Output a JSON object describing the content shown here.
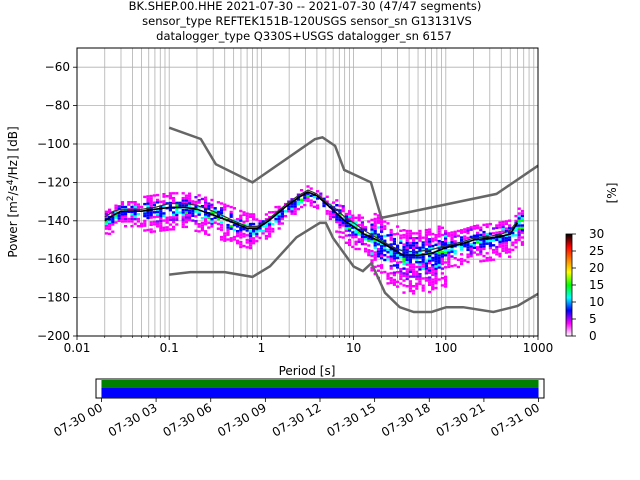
{
  "chart_data": {
    "type": "ppsd",
    "title_lines": [
      "BK.SHEP.00.HHE   2021-07-30 -- 2021-07-30  (47/47 segments)",
      "sensor_type REFTEK151B-120USGS sensor_sn G13131VS",
      "datalogger_type Q330S+USGS datalogger_sn 6157"
    ],
    "xlabel": "Period [s]",
    "ylabel_parts": {
      "pre": "Power [m",
      "sup1": "2",
      "mid": "/s",
      "sup2": "4",
      "post": "/Hz] [dB]"
    },
    "x_scale": "log",
    "xlim": [
      0.01,
      1000
    ],
    "ylim": [
      -200,
      -50
    ],
    "x_ticks": [
      {
        "value": 0.01,
        "label": "0.01"
      },
      {
        "value": 0.1,
        "label": "0.1"
      },
      {
        "value": 1,
        "label": "1"
      },
      {
        "value": 10,
        "label": "10"
      },
      {
        "value": 100,
        "label": "100"
      },
      {
        "value": 1000,
        "label": "1000"
      }
    ],
    "y_ticks": [
      {
        "value": -60,
        "label": "−60"
      },
      {
        "value": -80,
        "label": "−80"
      },
      {
        "value": -100,
        "label": "−100"
      },
      {
        "value": -120,
        "label": "−120"
      },
      {
        "value": -140,
        "label": "−140"
      },
      {
        "value": -160,
        "label": "−160"
      },
      {
        "value": -180,
        "label": "−180"
      },
      {
        "value": -200,
        "label": "−200"
      }
    ],
    "grid": true,
    "colorbar": {
      "label": "[%]",
      "range": [
        0,
        30
      ],
      "ticks": [
        {
          "value": 0,
          "label": "0"
        },
        {
          "value": 5,
          "label": "5"
        },
        {
          "value": 10,
          "label": "10"
        },
        {
          "value": 15,
          "label": "15"
        },
        {
          "value": 20,
          "label": "20"
        },
        {
          "value": 25,
          "label": "25"
        },
        {
          "value": 30,
          "label": "30"
        }
      ],
      "colors": [
        "#ffffff",
        "#ff00ff",
        "#0000ff",
        "#00ffff",
        "#00ff00",
        "#ffff00",
        "#ff7f00",
        "#ff0000",
        "#000000"
      ]
    },
    "nhnm": [
      [
        0.1,
        -91.5
      ],
      [
        0.22,
        -97.4
      ],
      [
        0.32,
        -110.5
      ],
      [
        0.8,
        -120.0
      ],
      [
        3.8,
        -97.5
      ],
      [
        4.6,
        -96.5
      ],
      [
        6.3,
        -101.0
      ],
      [
        7.9,
        -113.5
      ],
      [
        15.4,
        -120.0
      ],
      [
        20.0,
        -138.5
      ],
      [
        354.8,
        -126.0
      ],
      [
        1000,
        -111.3
      ]
    ],
    "nlnm": [
      [
        0.1,
        -168.0
      ],
      [
        0.17,
        -166.7
      ],
      [
        0.4,
        -166.7
      ],
      [
        0.8,
        -169.2
      ],
      [
        1.24,
        -163.7
      ],
      [
        2.4,
        -148.6
      ],
      [
        4.3,
        -141.1
      ],
      [
        5.0,
        -141.1
      ],
      [
        6.0,
        -149.0
      ],
      [
        10.0,
        -163.8
      ],
      [
        12.6,
        -166.2
      ],
      [
        15.6,
        -162.1
      ],
      [
        21.9,
        -177.5
      ],
      [
        31.6,
        -185.0
      ],
      [
        45.0,
        -187.5
      ],
      [
        70.0,
        -187.5
      ],
      [
        101.0,
        -185.0
      ],
      [
        154.0,
        -185.0
      ],
      [
        328.0,
        -187.5
      ],
      [
        600.0,
        -184.4
      ],
      [
        1000,
        -178.0
      ]
    ],
    "mode_curve": [
      [
        0.02,
        -140
      ],
      [
        0.025,
        -137
      ],
      [
        0.03,
        -135
      ],
      [
        0.05,
        -135
      ],
      [
        0.07,
        -134
      ],
      [
        0.1,
        -133
      ],
      [
        0.15,
        -133
      ],
      [
        0.2,
        -134
      ],
      [
        0.3,
        -137
      ],
      [
        0.5,
        -141
      ],
      [
        0.7,
        -144
      ],
      [
        0.9,
        -144
      ],
      [
        1.2,
        -140
      ],
      [
        1.8,
        -133
      ],
      [
        2.5,
        -128
      ],
      [
        3.2,
        -125
      ],
      [
        4.0,
        -127
      ],
      [
        5.0,
        -131
      ],
      [
        6.5,
        -136
      ],
      [
        8.0,
        -140
      ],
      [
        10.0,
        -143
      ],
      [
        13.0,
        -147
      ],
      [
        18.0,
        -150
      ],
      [
        25.0,
        -154
      ],
      [
        35.0,
        -158
      ],
      [
        50.0,
        -158
      ],
      [
        70.0,
        -157
      ],
      [
        100.0,
        -154
      ],
      [
        150.0,
        -152
      ],
      [
        200.0,
        -150
      ],
      [
        300.0,
        -149
      ],
      [
        400.0,
        -148
      ],
      [
        500.0,
        -147
      ],
      [
        600.0,
        -141
      ]
    ],
    "mean_curve": [
      [
        0.02,
        -138
      ],
      [
        0.025,
        -135
      ],
      [
        0.03,
        -134
      ],
      [
        0.05,
        -134
      ],
      [
        0.07,
        -133
      ],
      [
        0.1,
        -131
      ],
      [
        0.15,
        -131
      ],
      [
        0.2,
        -132
      ],
      [
        0.3,
        -135
      ],
      [
        0.5,
        -140
      ],
      [
        0.7,
        -143
      ],
      [
        0.9,
        -143
      ],
      [
        1.2,
        -139
      ],
      [
        1.8,
        -132
      ],
      [
        2.5,
        -127
      ],
      [
        3.2,
        -124
      ],
      [
        4.0,
        -126
      ],
      [
        5.0,
        -130
      ],
      [
        6.5,
        -134
      ],
      [
        8.0,
        -138
      ],
      [
        10.0,
        -141
      ],
      [
        13.0,
        -145
      ],
      [
        18.0,
        -149
      ],
      [
        25.0,
        -153
      ],
      [
        35.0,
        -156
      ],
      [
        50.0,
        -156
      ],
      [
        70.0,
        -155
      ],
      [
        100.0,
        -153
      ],
      [
        150.0,
        -151
      ],
      [
        200.0,
        -149
      ],
      [
        300.0,
        -148
      ],
      [
        400.0,
        -147
      ],
      [
        500.0,
        -145
      ],
      [
        600.0,
        -140
      ]
    ],
    "data_coverage": {
      "x_ticks": [
        "07-30 00",
        "07-30 03",
        "07-30 06",
        "07-30 09",
        "07-30 12",
        "07-30 15",
        "07-30 18",
        "07-30 21",
        "07-31 00"
      ],
      "span_hours": [
        -0.3,
        24.3
      ],
      "data_hours": [
        0,
        24
      ],
      "colors": [
        "#008000",
        "#0000ff"
      ]
    }
  }
}
